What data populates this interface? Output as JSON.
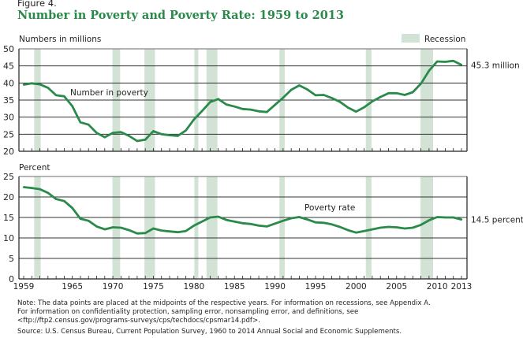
{
  "figure_label": "Figure 4.",
  "title": "Number in Poverty and Poverty Rate: 1959 to 2013",
  "legend": {
    "recession_label": "Recession",
    "recession_color": "#d2e3d5"
  },
  "line_color": "#2a8a4a",
  "chart_data": [
    {
      "type": "line",
      "title": "Number in poverty",
      "ylabel": "Numbers in millions",
      "ylim": [
        20,
        50
      ],
      "yticks": [
        20,
        25,
        30,
        35,
        40,
        45,
        50
      ],
      "end_label": "45.3 million",
      "series_label": "Number in poverty",
      "grid": true,
      "legend": "top-right",
      "x": [
        1959,
        1960,
        1961,
        1962,
        1963,
        1964,
        1965,
        1966,
        1967,
        1968,
        1969,
        1970,
        1971,
        1972,
        1973,
        1974,
        1975,
        1976,
        1977,
        1978,
        1979,
        1980,
        1981,
        1982,
        1983,
        1984,
        1985,
        1986,
        1987,
        1988,
        1989,
        1990,
        1991,
        1992,
        1993,
        1994,
        1995,
        1996,
        1997,
        1998,
        1999,
        2000,
        2001,
        2002,
        2003,
        2004,
        2005,
        2006,
        2007,
        2008,
        2009,
        2010,
        2011,
        2012,
        2013
      ],
      "values": [
        39.5,
        39.9,
        39.6,
        38.6,
        36.4,
        36.1,
        33.2,
        28.5,
        27.8,
        25.4,
        24.1,
        25.4,
        25.6,
        24.5,
        23.0,
        23.4,
        25.9,
        25.0,
        24.7,
        24.5,
        26.1,
        29.3,
        31.8,
        34.4,
        35.3,
        33.7,
        33.1,
        32.4,
        32.2,
        31.7,
        31.5,
        33.6,
        35.7,
        38.0,
        39.3,
        38.1,
        36.4,
        36.5,
        35.6,
        34.5,
        32.8,
        31.6,
        32.9,
        34.6,
        35.9,
        37.0,
        37.0,
        36.5,
        37.3,
        39.8,
        43.6,
        46.3,
        46.2,
        46.5,
        45.3
      ]
    },
    {
      "type": "line",
      "title": "Poverty rate",
      "ylabel": "Percent",
      "ylim": [
        0,
        25
      ],
      "yticks": [
        0,
        5,
        10,
        15,
        20,
        25
      ],
      "end_label": "14.5 percent",
      "series_label": "Poverty rate",
      "grid": true,
      "x": [
        1959,
        1960,
        1961,
        1962,
        1963,
        1964,
        1965,
        1966,
        1967,
        1968,
        1969,
        1970,
        1971,
        1972,
        1973,
        1974,
        1975,
        1976,
        1977,
        1978,
        1979,
        1980,
        1981,
        1982,
        1983,
        1984,
        1985,
        1986,
        1987,
        1988,
        1989,
        1990,
        1991,
        1992,
        1993,
        1994,
        1995,
        1996,
        1997,
        1998,
        1999,
        2000,
        2001,
        2002,
        2003,
        2004,
        2005,
        2006,
        2007,
        2008,
        2009,
        2010,
        2011,
        2012,
        2013
      ],
      "values": [
        22.4,
        22.2,
        21.9,
        21.0,
        19.5,
        19.0,
        17.3,
        14.7,
        14.2,
        12.8,
        12.1,
        12.6,
        12.5,
        11.9,
        11.1,
        11.2,
        12.3,
        11.8,
        11.6,
        11.4,
        11.7,
        13.0,
        14.0,
        15.0,
        15.2,
        14.4,
        14.0,
        13.6,
        13.4,
        13.0,
        12.8,
        13.5,
        14.2,
        14.8,
        15.1,
        14.5,
        13.8,
        13.7,
        13.3,
        12.7,
        11.9,
        11.3,
        11.7,
        12.1,
        12.5,
        12.7,
        12.6,
        12.3,
        12.5,
        13.2,
        14.3,
        15.1,
        15.0,
        15.0,
        14.5
      ]
    }
  ],
  "x_axis": {
    "tick_labels": [
      "1959",
      "1965",
      "1970",
      "1975",
      "1980",
      "1985",
      "1990",
      "1995",
      "2000",
      "2005",
      "2010",
      "2013"
    ],
    "tick_values": [
      1959,
      1965,
      1970,
      1975,
      1980,
      1985,
      1990,
      1995,
      2000,
      2005,
      2010,
      2013
    ],
    "range": [
      1958.5,
      2013.5
    ]
  },
  "recessions": [
    [
      1960.3,
      1961.1
    ],
    [
      1969.95,
      1970.9
    ],
    [
      1973.9,
      1975.2
    ],
    [
      1980.05,
      1980.55
    ],
    [
      1981.55,
      1982.9
    ],
    [
      1990.55,
      1991.2
    ],
    [
      2001.2,
      2001.9
    ],
    [
      2007.95,
      2009.5
    ]
  ],
  "notes": {
    "line1": "Note: The data points are placed at the midpoints of the respective years. For information on recessions, see Appendix A.",
    "line2": "For information on confidentiality protection, sampling error, nonsampling error, and definitions, see",
    "line3": "<ftp://ftp2.census.gov/programs-surveys/cps/techdocs/cpsmar14.pdf>.",
    "source": "Source: U.S. Census Bureau, Current Population Survey, 1960 to 2014 Annual Social and Economic Supplements."
  }
}
